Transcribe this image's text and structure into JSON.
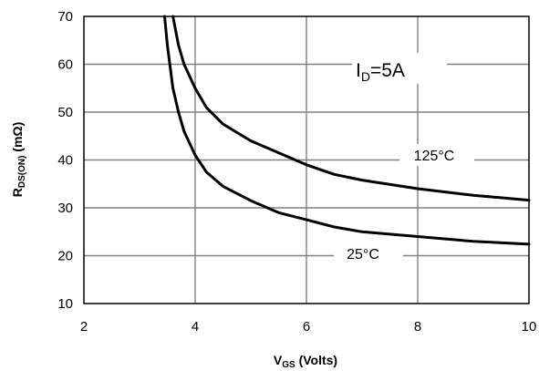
{
  "chart_data": {
    "type": "line",
    "xlabel": {
      "main": "V",
      "sub": "GS",
      "rest": " (Volts)"
    },
    "ylabel": {
      "main": "R",
      "sub": "DS(ON)",
      "rest": " (mΩ)"
    },
    "xlim": [
      2,
      10
    ],
    "ylim": [
      10,
      70
    ],
    "xticks": [
      2,
      4,
      6,
      8,
      10
    ],
    "yticks": [
      10,
      20,
      30,
      40,
      50,
      60,
      70
    ],
    "grid": true,
    "condition": {
      "main": "I",
      "sub": "D",
      "rest": "=5A"
    },
    "series": [
      {
        "name": "125°C",
        "x": [
          3.6,
          3.7,
          3.8,
          4.0,
          4.2,
          4.5,
          5.0,
          5.5,
          6.0,
          6.5,
          7.0,
          8.0,
          9.0,
          10.0
        ],
        "y": [
          70,
          64,
          60,
          55,
          51,
          47.5,
          44,
          41.5,
          39,
          37,
          35.8,
          34,
          32.6,
          31.6
        ]
      },
      {
        "name": "25°C",
        "x": [
          3.45,
          3.5,
          3.6,
          3.7,
          3.8,
          4.0,
          4.2,
          4.5,
          5.0,
          5.5,
          6.0,
          6.5,
          7.0,
          8.0,
          9.0,
          10.0
        ],
        "y": [
          70,
          64,
          55,
          50,
          46,
          41,
          37.5,
          34.5,
          31.5,
          29,
          27.5,
          26,
          25,
          24,
          23,
          22.4
        ]
      }
    ]
  }
}
